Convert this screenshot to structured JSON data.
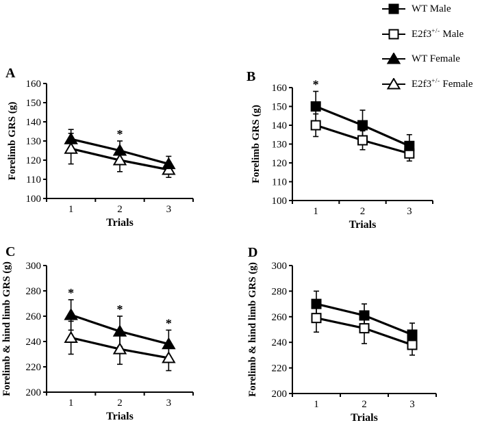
{
  "figure": {
    "background": "#ffffff",
    "ink": "#000000",
    "marker_fill_open": "#ffffff"
  },
  "legend": {
    "items": [
      {
        "id": "wt-male",
        "base": "WT Male",
        "sup": "",
        "rest": "",
        "marker": "square",
        "filled": true
      },
      {
        "id": "e2f3-male",
        "base": "E2f3",
        "sup": "+/-",
        "rest": " Male",
        "marker": "square",
        "filled": false
      },
      {
        "id": "wt-female",
        "base": "WT Female",
        "sup": "",
        "rest": "",
        "marker": "triangle",
        "filled": true
      },
      {
        "id": "e2f3-female",
        "base": "E2f3",
        "sup": "+/-",
        "rest": " Female",
        "marker": "triangle",
        "filled": false
      }
    ]
  },
  "chart_data": [
    {
      "panel": "A",
      "type": "line",
      "xlabel": "Trials",
      "ylabel": "Forelimb GRS (g)",
      "categories": [
        "1",
        "2",
        "3"
      ],
      "ylim": [
        100,
        160
      ],
      "ytick_step": 10,
      "grid": false,
      "series": [
        {
          "name": "WT Female",
          "marker": "triangle",
          "filled": true,
          "values": [
            131,
            125,
            118
          ],
          "errors": [
            5,
            5,
            4
          ]
        },
        {
          "name": "E2f3+/- Female",
          "marker": "triangle",
          "filled": false,
          "values": [
            126,
            120,
            115
          ],
          "errors": [
            8,
            6,
            4
          ]
        }
      ],
      "significance": [
        {
          "trial": 2,
          "above_series": "WT Female",
          "symbol": "*"
        }
      ]
    },
    {
      "panel": "B",
      "type": "line",
      "xlabel": "Trials",
      "ylabel": "Forelimb GRS (g)",
      "categories": [
        "1",
        "2",
        "3"
      ],
      "ylim": [
        100,
        160
      ],
      "ytick_step": 10,
      "grid": false,
      "series": [
        {
          "name": "WT Male",
          "marker": "square",
          "filled": true,
          "values": [
            150,
            140,
            129
          ],
          "errors": [
            8,
            8,
            6
          ]
        },
        {
          "name": "E2f3+/- Male",
          "marker": "square",
          "filled": false,
          "values": [
            140,
            132,
            125
          ],
          "errors": [
            6,
            5,
            4
          ]
        }
      ],
      "significance": [
        {
          "trial": 1,
          "above_series": "WT Male",
          "symbol": "*"
        }
      ]
    },
    {
      "panel": "C",
      "type": "line",
      "xlabel": "Trials",
      "ylabel": "Forelimb & hind limb GRS (g)",
      "categories": [
        "1",
        "2",
        "3"
      ],
      "ylim": [
        200,
        300
      ],
      "ytick_step": 20,
      "grid": false,
      "series": [
        {
          "name": "WT Female",
          "marker": "triangle",
          "filled": true,
          "values": [
            261,
            248,
            238
          ],
          "errors": [
            12,
            12,
            11
          ]
        },
        {
          "name": "E2f3+/- Female",
          "marker": "triangle",
          "filled": false,
          "values": [
            243,
            234,
            227
          ],
          "errors": [
            13,
            12,
            10
          ]
        }
      ],
      "significance": [
        {
          "trial": 1,
          "above_series": "WT Female",
          "symbol": "*"
        },
        {
          "trial": 2,
          "above_series": "WT Female",
          "symbol": "*"
        },
        {
          "trial": 3,
          "above_series": "WT Female",
          "symbol": "*"
        }
      ]
    },
    {
      "panel": "D",
      "type": "line",
      "xlabel": "Trials",
      "ylabel": "Forelimb & hind limb GRS (g)",
      "categories": [
        "1",
        "2",
        "3"
      ],
      "ylim": [
        200,
        300
      ],
      "ytick_step": 20,
      "grid": false,
      "series": [
        {
          "name": "WT Male",
          "marker": "square",
          "filled": true,
          "values": [
            270,
            261,
            246
          ],
          "errors": [
            10,
            9,
            9
          ]
        },
        {
          "name": "E2f3+/- Male",
          "marker": "square",
          "filled": false,
          "values": [
            259,
            251,
            238
          ],
          "errors": [
            11,
            12,
            8
          ]
        }
      ],
      "significance": []
    }
  ]
}
